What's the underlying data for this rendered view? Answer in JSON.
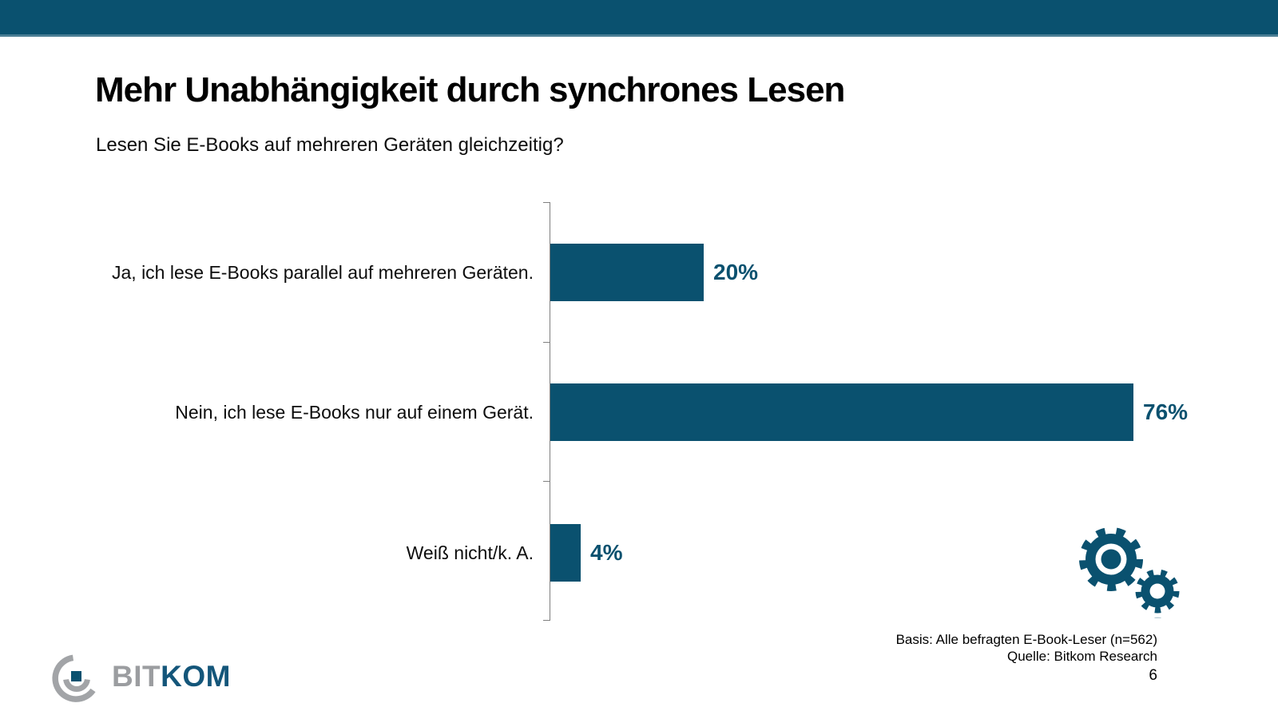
{
  "slide": {
    "title": "Mehr Unabhängigkeit durch synchrones Lesen",
    "question": "Lesen Sie E-Books auf mehreren Geräten gleichzeitig?",
    "page_number": "6",
    "footer": {
      "basis": "Basis: Alle befragten E-Book-Leser (n=562)",
      "source": "Quelle: Bitkom Research"
    },
    "logo": {
      "text_gray": "BIT",
      "text_teal": "KOM"
    }
  },
  "colors": {
    "accent_teal": "#0a516f",
    "header_bottom_line": "#4a7e94",
    "axis_gray": "#7f7f7f",
    "logo_gray": "#a2a4a7"
  },
  "chart_data": {
    "type": "bar",
    "orientation": "horizontal",
    "title": "Mehr Unabhängigkeit durch synchrones Lesen",
    "subtitle": "Lesen Sie E-Books auf mehreren Geräten gleichzeitig?",
    "categories": [
      "Ja, ich lese E-Books parallel auf mehreren Geräten.",
      "Nein, ich lese E-Books nur auf einem Gerät.",
      "Weiß nicht/k. A."
    ],
    "values": [
      20,
      76,
      4
    ],
    "value_labels": [
      "20%",
      "76%",
      "4%"
    ],
    "unit": "%",
    "xlim": [
      0,
      80
    ],
    "grid": false,
    "legend": false,
    "bar_color": "#0a516f",
    "value_label_position": "outside-right"
  }
}
